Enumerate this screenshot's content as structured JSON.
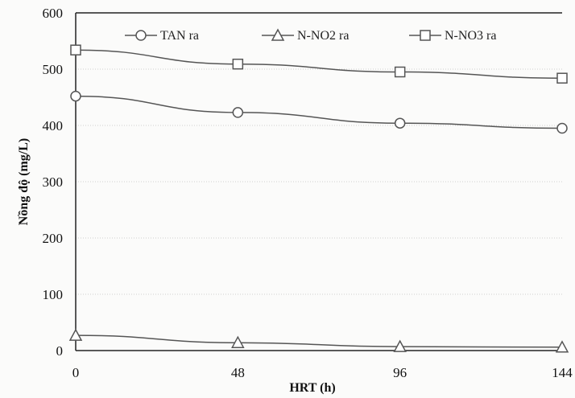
{
  "chart_data": {
    "type": "line",
    "title": "",
    "xlabel": "HRT (h)",
    "ylabel": "Nồng độ (mg/L)",
    "categories": [
      "0",
      "48",
      "96",
      "144"
    ],
    "x": [
      0,
      48,
      96,
      144
    ],
    "xlim": [
      0,
      144
    ],
    "ylim": [
      0,
      600
    ],
    "yticks": [
      0,
      100,
      200,
      300,
      400,
      500,
      600
    ],
    "grid": true,
    "legend_position": "top",
    "series": [
      {
        "name": "TAN ra",
        "marker": "circle",
        "values": [
          452,
          423,
          404,
          395
        ]
      },
      {
        "name": "N-NO2 ra",
        "marker": "triangle",
        "values": [
          27,
          14,
          7,
          6
        ]
      },
      {
        "name": "N-NO3 ra",
        "marker": "square",
        "values": [
          534,
          509,
          495,
          484
        ]
      }
    ]
  }
}
